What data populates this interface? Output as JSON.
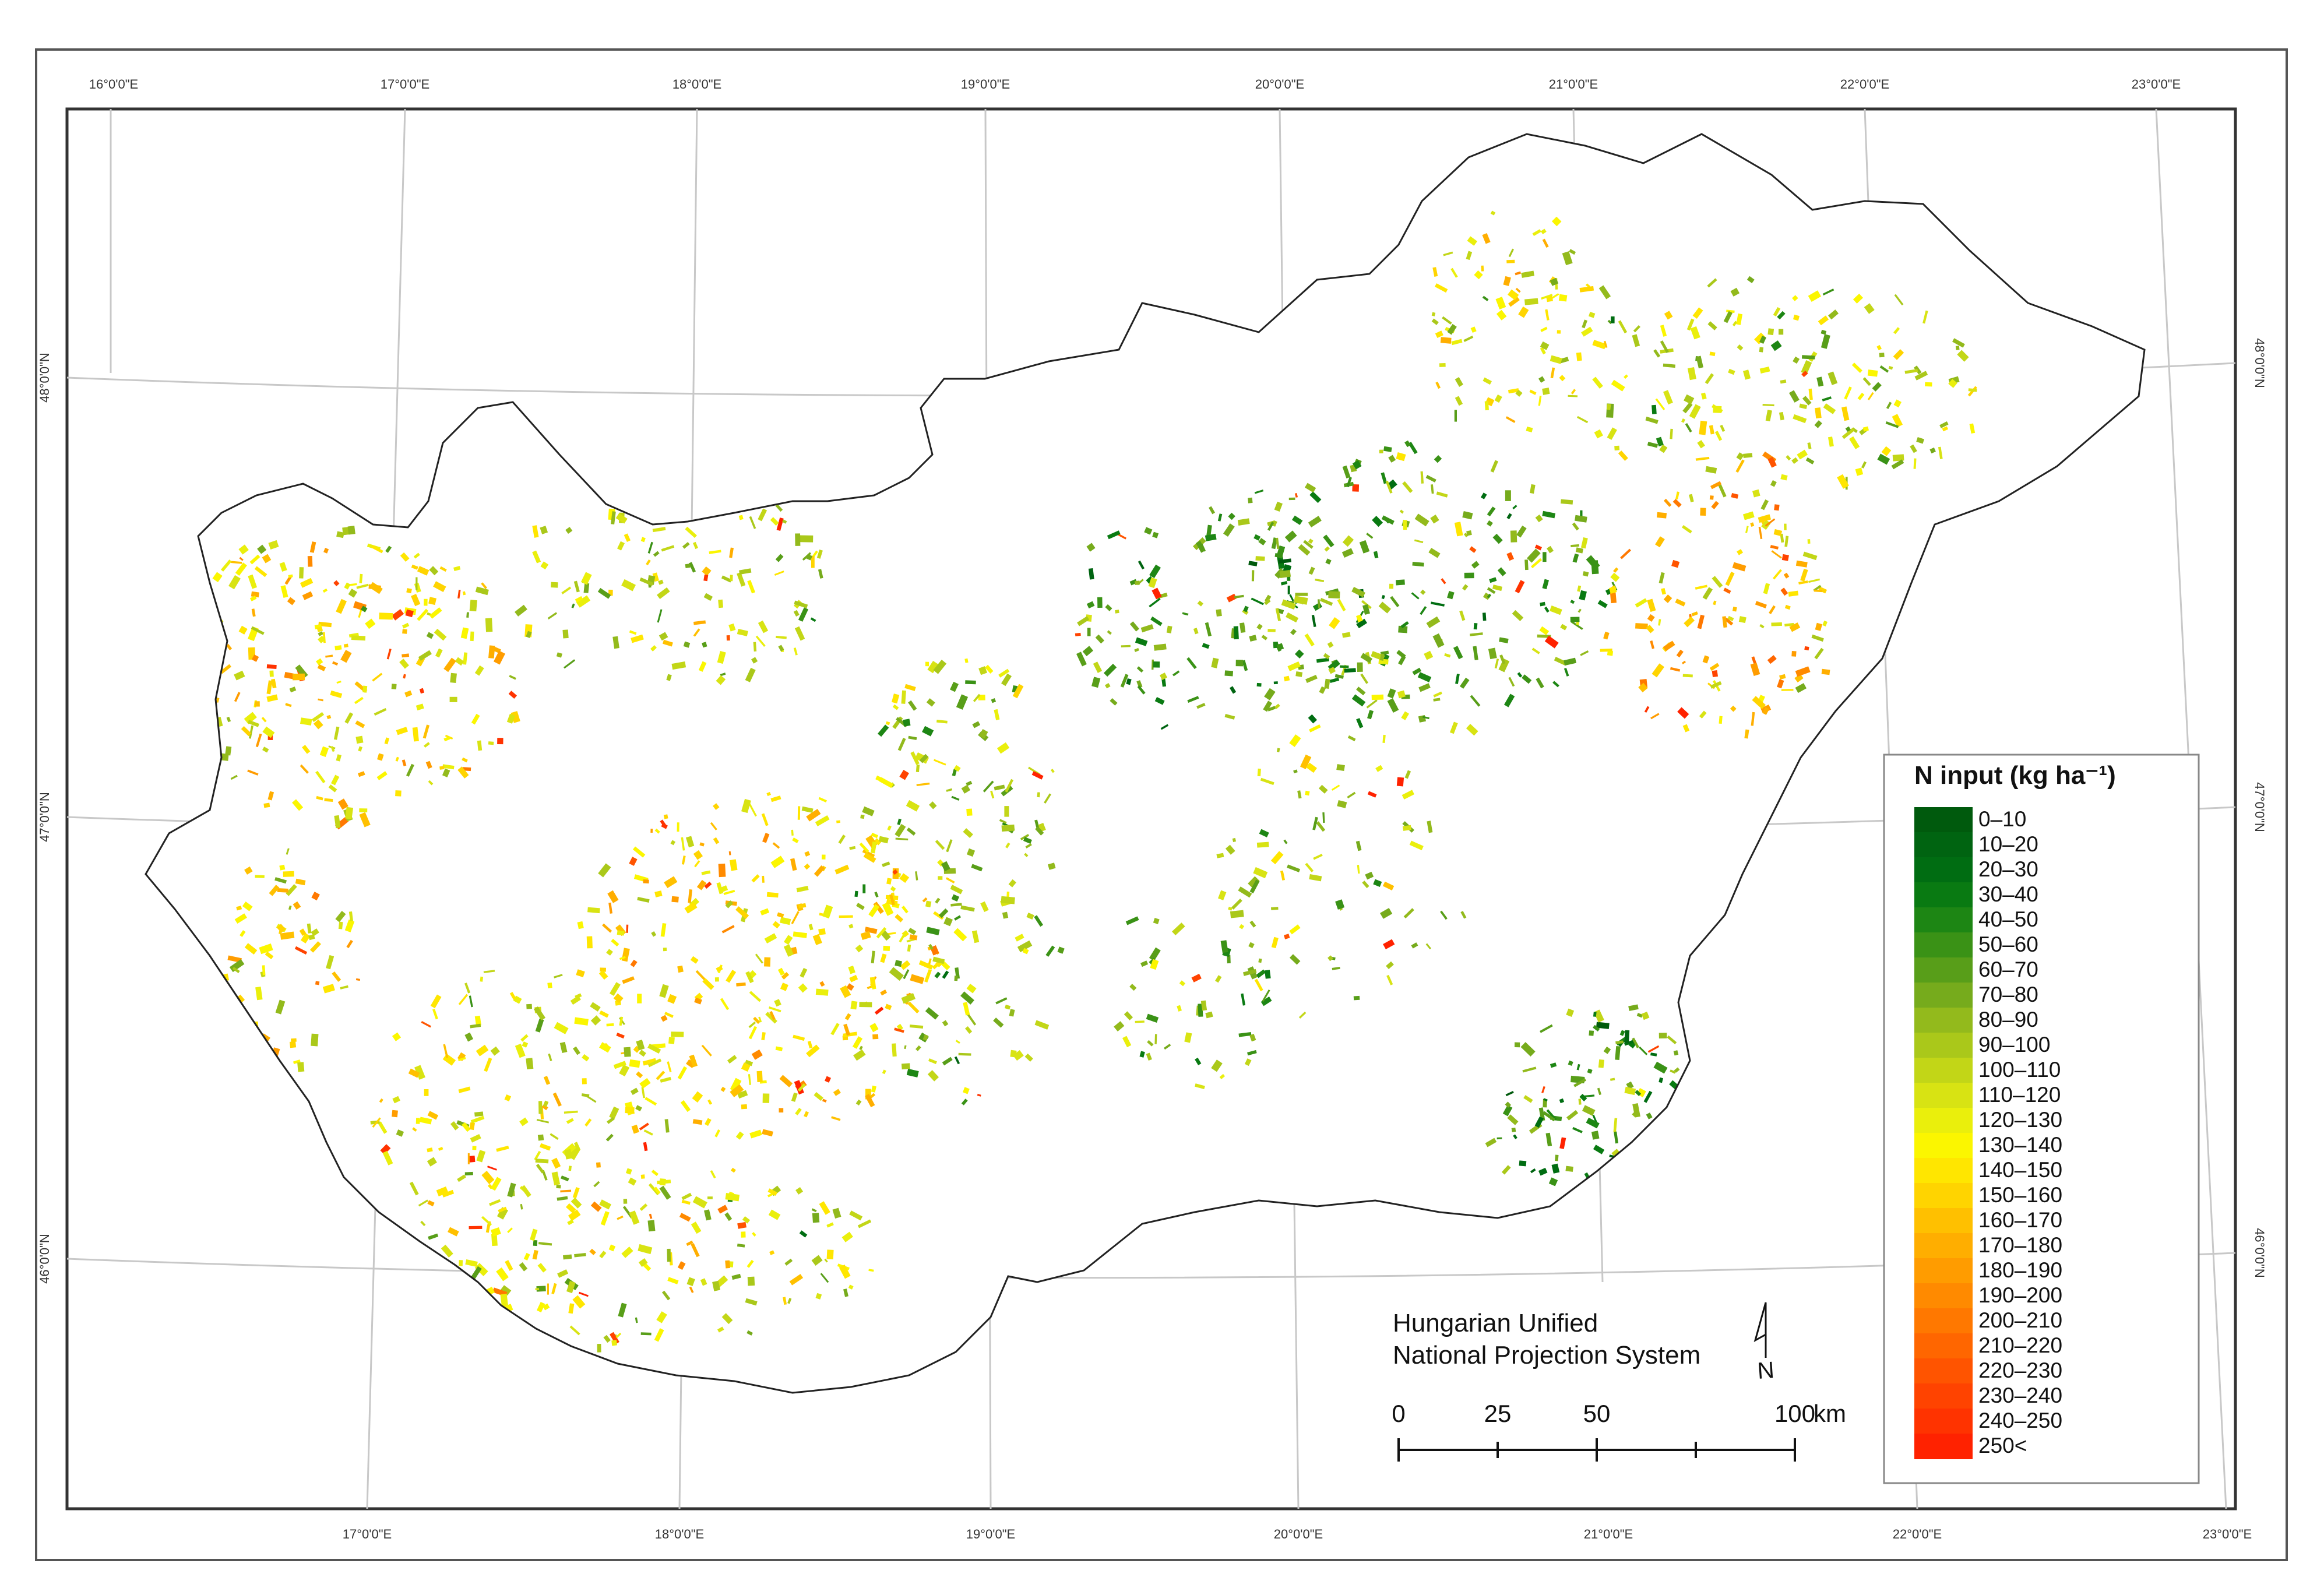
{
  "graticule": {
    "top_labels": [
      "16°0'0\"E",
      "17°0'0\"E",
      "18°0'0\"E",
      "19°0'0\"E",
      "20°0'0\"E",
      "21°0'0\"E",
      "22°0'0\"E",
      "23°0'0\"E"
    ],
    "bottom_labels": [
      "17°0'0\"E",
      "18°0'0\"E",
      "19°0'0\"E",
      "20°0'0\"E",
      "21°0'0\"E",
      "22°0'0\"E",
      "23°0'0\"E"
    ],
    "lat_labels": [
      "48°0'0\"N",
      "47°0'0\"N",
      "46°0'0\"N"
    ]
  },
  "legend": {
    "title": "N input (kg ha⁻¹)",
    "classes": [
      {
        "label": "0–10",
        "color": "#005a0d"
      },
      {
        "label": "10–20",
        "color": "#006411"
      },
      {
        "label": "20–30",
        "color": "#006d12"
      },
      {
        "label": "30–40",
        "color": "#097a12"
      },
      {
        "label": "40–50",
        "color": "#1d8614"
      },
      {
        "label": "50–60",
        "color": "#3a9216"
      },
      {
        "label": "60–70",
        "color": "#589e19"
      },
      {
        "label": "70–80",
        "color": "#76ab1c"
      },
      {
        "label": "80–90",
        "color": "#93ba1c"
      },
      {
        "label": "90–100",
        "color": "#aac81a"
      },
      {
        "label": "100–110",
        "color": "#c2d617"
      },
      {
        "label": "110–120",
        "color": "#d8e313"
      },
      {
        "label": "120–130",
        "color": "#eaef0c"
      },
      {
        "label": "130–140",
        "color": "#fbf600"
      },
      {
        "label": "140–150",
        "color": "#ffe600"
      },
      {
        "label": "150–160",
        "color": "#ffd400"
      },
      {
        "label": "160–170",
        "color": "#ffc000"
      },
      {
        "label": "170–180",
        "color": "#ffae00"
      },
      {
        "label": "180–190",
        "color": "#ff9c00"
      },
      {
        "label": "190–200",
        "color": "#ff8a00"
      },
      {
        "label": "200–210",
        "color": "#ff7800"
      },
      {
        "label": "210–220",
        "color": "#ff6600"
      },
      {
        "label": "220–230",
        "color": "#ff5400"
      },
      {
        "label": "230–240",
        "color": "#ff4300"
      },
      {
        "label": "240–250",
        "color": "#ff3300"
      },
      {
        "label": "250<",
        "color": "#ff2200"
      }
    ]
  },
  "projection": {
    "line1": "Hungarian Unified",
    "line2": "National Projection System"
  },
  "scale_bar": {
    "ticks": [
      "0",
      "25",
      "50",
      "100"
    ],
    "unit": "km"
  },
  "north_arrow": {
    "label": "N"
  },
  "colors": {
    "border": "#000000",
    "graticule_line": "#c8c8c8",
    "country_outline": "#222222"
  }
}
